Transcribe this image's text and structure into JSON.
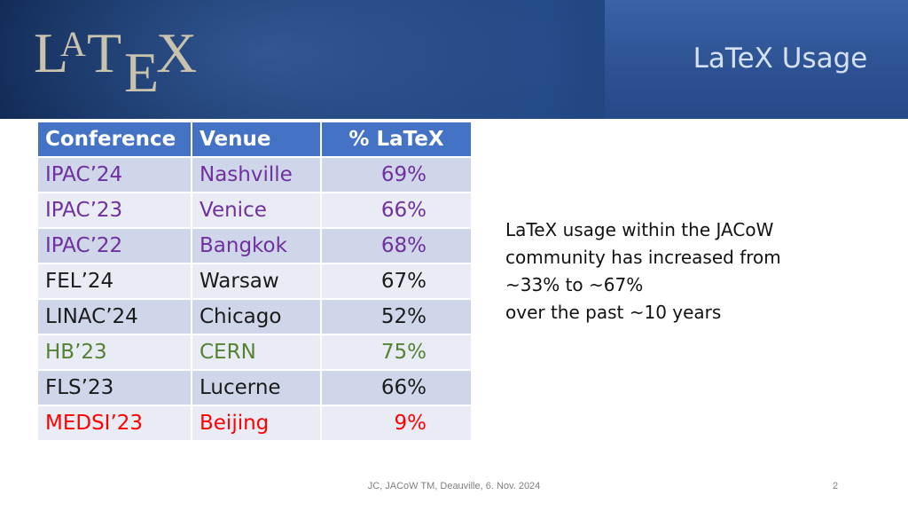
{
  "header": {
    "logo": {
      "l1": "L",
      "l2": "A",
      "l3": "T",
      "l4": "E",
      "l5": "X"
    },
    "title": "LaTeX Usage"
  },
  "table": {
    "columns": [
      "Conference",
      "Venue",
      "% LaTeX"
    ],
    "rows": [
      {
        "conference": "IPAC’24",
        "venue": "Nashville",
        "latex": "69%",
        "color": "#7030a0"
      },
      {
        "conference": "IPAC’23",
        "venue": "Venice",
        "latex": "66%",
        "color": "#7030a0"
      },
      {
        "conference": "IPAC’22",
        "venue": "Bangkok",
        "latex": "68%",
        "color": "#7030a0"
      },
      {
        "conference": "FEL’24",
        "venue": "Warsaw",
        "latex": "67%",
        "color": "#1b1b1b"
      },
      {
        "conference": "LINAC’24",
        "venue": "Chicago",
        "latex": "52%",
        "color": "#1b1b1b"
      },
      {
        "conference": "HB’23",
        "venue": "CERN",
        "latex": "75%",
        "color": "#548235"
      },
      {
        "conference": "FLS’23",
        "venue": "Lucerne",
        "latex": "66%",
        "color": "#1b1b1b"
      },
      {
        "conference": "MEDSI’23",
        "venue": "Beijing",
        "latex": "9%",
        "color": "#ff0000"
      }
    ]
  },
  "note": {
    "lines": [
      "LaTeX usage within the JACoW",
      "community has increased from",
      "~33% to ~67%",
      "over the past ~10 years"
    ]
  },
  "footer": {
    "text": "JC, JACoW TM, Deauville, 6. Nov. 2024",
    "page": "2"
  },
  "colors": {
    "header_cell": "#4472c4",
    "row_odd": "#cfd6e9",
    "row_even": "#e9ecf4"
  }
}
